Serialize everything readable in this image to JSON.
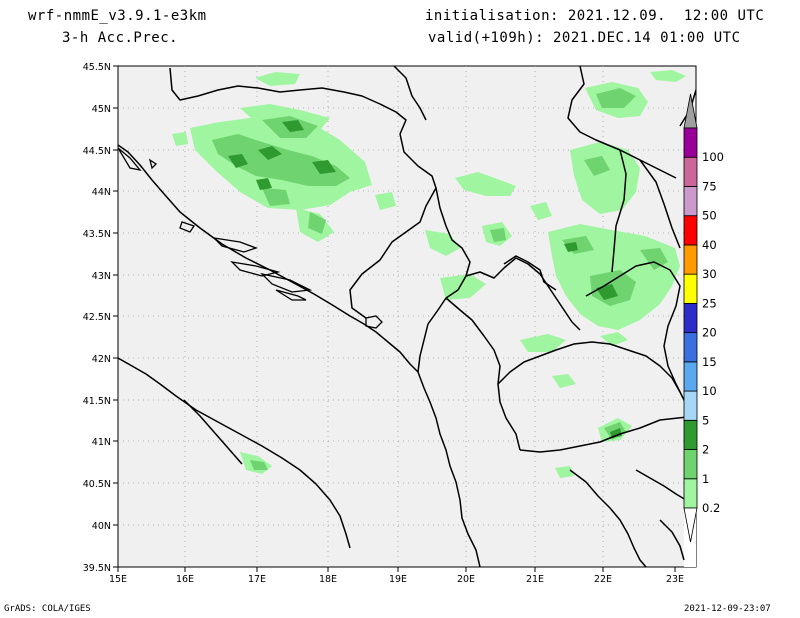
{
  "header": {
    "model": "wrf-nmmE_v3.9.1-e3km",
    "field": "3-h Acc.Prec.",
    "init": "initialisation: 2021.12.09.  12:00 UTC",
    "valid": "valid(+109h): 2021.DEC.14 01:00 UTC"
  },
  "map": {
    "lat_labels": [
      "45.5N",
      "45N",
      "44.5N",
      "44N",
      "43.5N",
      "43N",
      "42.5N",
      "42N",
      "41.5N",
      "41N",
      "40.5N",
      "40N",
      "39.5N"
    ],
    "lon_labels": [
      "15E",
      "16E",
      "17E",
      "18E",
      "19E",
      "20E",
      "21E",
      "22E",
      "23E"
    ],
    "colors": {
      "land_sea": "#f0f0f0",
      "border": "#000000",
      "grid": "#a0a0a0"
    }
  },
  "legend": {
    "bins": [
      {
        "label": "0.2",
        "color": "#a0f5a0"
      },
      {
        "label": "1",
        "color": "#6fd36f"
      },
      {
        "label": "2",
        "color": "#2f9a2f"
      },
      {
        "label": "5",
        "color": "#a6d8f6"
      },
      {
        "label": "10",
        "color": "#5aa9f0"
      },
      {
        "label": "15",
        "color": "#3a6fe0"
      },
      {
        "label": "20",
        "color": "#2c2cc8"
      },
      {
        "label": "25",
        "color": "#ffff00"
      },
      {
        "label": "30",
        "color": "#ff9a00"
      },
      {
        "label": "40",
        "color": "#ff0000"
      },
      {
        "label": "50",
        "color": "#cc99cc"
      },
      {
        "label": "75",
        "color": "#cc6699"
      },
      {
        "label": "100",
        "color": "#990099"
      }
    ],
    "top_color": "#a0a0a0"
  },
  "footer": {
    "left": "GrADS: COLA/IGES",
    "right": "2021-12-09-23:07"
  }
}
